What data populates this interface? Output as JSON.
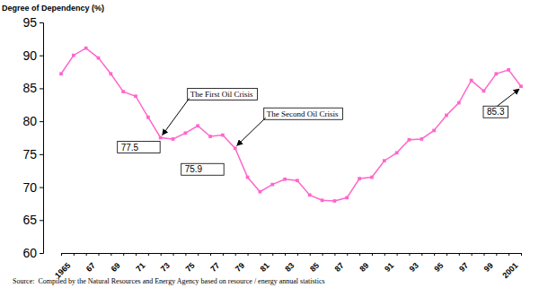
{
  "chart_data": {
    "type": "line",
    "title": "Degree of Dependency (%)",
    "source": "Source:  Compiled by the Natural Resources and Energy Agency based on resource / energy annual statistics",
    "categories": [
      "1965",
      null,
      "67",
      null,
      "69",
      null,
      "71",
      null,
      "73",
      null,
      "75",
      null,
      "77",
      null,
      "79",
      null,
      "81",
      null,
      "83",
      null,
      "85",
      null,
      "87",
      null,
      "89",
      null,
      "91",
      null,
      "93",
      null,
      "95",
      null,
      "97",
      null,
      "99",
      null,
      "2001",
      null
    ],
    "series": [
      {
        "color": "#ff66cc",
        "marker": "square",
        "values": [
          87.2,
          90.0,
          91.1,
          89.6,
          87.2,
          84.5,
          83.8,
          80.6,
          77.5,
          77.3,
          78.2,
          79.3,
          77.7,
          77.9,
          75.9,
          71.5,
          69.3,
          70.4,
          71.2,
          71.0,
          68.8,
          68.0,
          67.9,
          68.4,
          71.3,
          71.5,
          74.0,
          75.2,
          77.2,
          77.3,
          78.6,
          80.9,
          82.8,
          86.2,
          84.6,
          87.2,
          87.8,
          85.3
        ],
        "value_labels": [
          null,
          null,
          null,
          null,
          null,
          null,
          null,
          null,
          "77.5",
          null,
          null,
          null,
          null,
          null,
          "75.9",
          null,
          null,
          null,
          null,
          null,
          null,
          null,
          null,
          null,
          null,
          null,
          null,
          null,
          null,
          null,
          null,
          null,
          null,
          null,
          null,
          null,
          null,
          "85.3"
        ]
      }
    ],
    "ylim": [
      60,
      95
    ],
    "yticks": [
      60,
      65,
      70,
      75,
      80,
      85,
      90,
      95
    ],
    "grid": false,
    "annotations": [
      {
        "text": "The First Oil Crisis",
        "x": "73"
      },
      {
        "text": "The Second Oil Crisis",
        "x": "79"
      }
    ]
  }
}
